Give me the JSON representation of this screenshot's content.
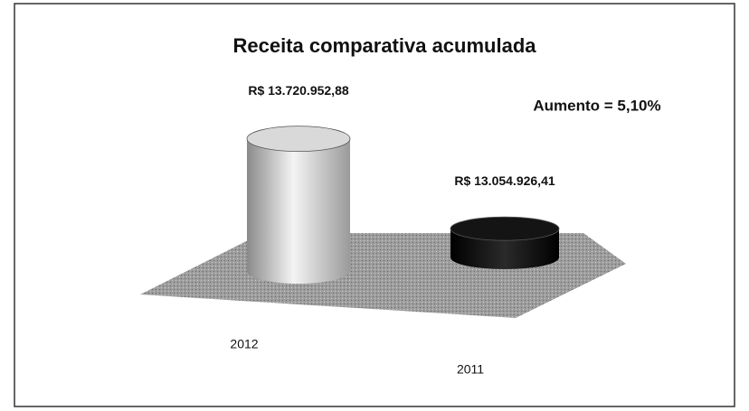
{
  "chart_data": {
    "type": "bar3d",
    "title": "Receita comparativa acumulada",
    "annotation": "Aumento = 5,10%",
    "categories": [
      "2012",
      "2011"
    ],
    "values": [
      13720952.88,
      13054926.41
    ],
    "value_labels": [
      "R$ 13.720.952,88",
      "R$ 13.054.926,41"
    ],
    "colors": [
      "#d9d9d9",
      "#141414"
    ],
    "ylim": [
      12870000,
      13800000
    ]
  }
}
